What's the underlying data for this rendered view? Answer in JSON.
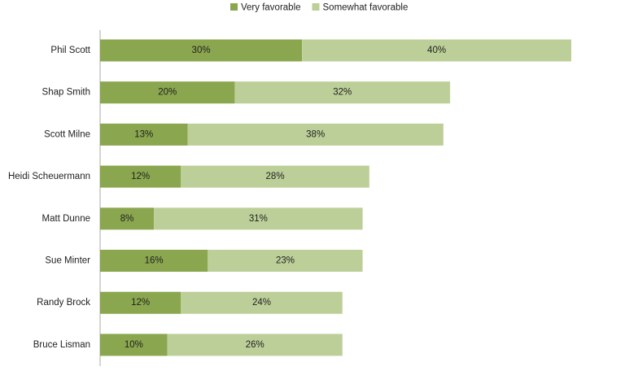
{
  "chart_data": {
    "type": "stacked-bar-horizontal",
    "categories": [
      "Phil Scott",
      "Shap Smith",
      "Scott Milne",
      "Heidi Scheuermann",
      "Matt Dunne",
      "Sue Minter",
      "Randy Brock",
      "Bruce Lisman"
    ],
    "series": [
      {
        "name": "Very favorable",
        "color": "#8aa64e",
        "values": [
          30,
          20,
          13,
          12,
          8,
          16,
          12,
          10
        ],
        "value_labels": [
          "30%",
          "20%",
          "13%",
          "12%",
          "8%",
          "16%",
          "12%",
          "10%"
        ]
      },
      {
        "name": "Somewhat favorable",
        "color": "#bccf98",
        "values": [
          40,
          32,
          38,
          28,
          31,
          23,
          24,
          26
        ],
        "value_labels": [
          "40%",
          "32%",
          "38%",
          "28%",
          "31%",
          "23%",
          "24%",
          "26%"
        ]
      }
    ],
    "legend": "top"
  }
}
